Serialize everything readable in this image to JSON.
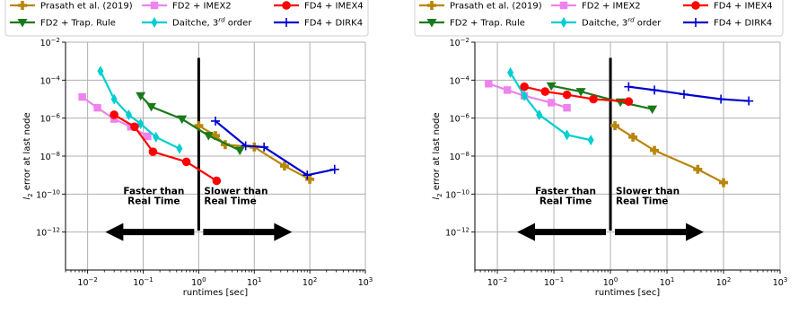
{
  "chart_data": [
    {
      "type": "scatter",
      "xlabel": "runtimes [sec]",
      "ylabel": "l_2 error at last node",
      "xscale": "log",
      "yscale": "log",
      "xlim": [
        0.004,
        1000
      ],
      "ylim": [
        1e-14,
        0.01
      ],
      "grid": true,
      "x_ticks": [
        "10^-2",
        "10^-1",
        "10^0",
        "10^1",
        "10^2",
        "10^3"
      ],
      "y_ticks": [
        "10^-12",
        "10^-10",
        "10^-8",
        "10^-6",
        "10^-4",
        "10^-2"
      ],
      "divider_x": 1.0,
      "annotations": [
        {
          "lines": [
            "Faster than",
            "Real Time"
          ],
          "arrow": "left"
        },
        {
          "lines": [
            "Slower than",
            "Real Time"
          ],
          "arrow": "right"
        }
      ],
      "series": [
        {
          "name": "Prasath et al. (2019)",
          "color": "#b8860b",
          "marker": "plus-filled",
          "x": [
            1.0,
            2.0,
            3.0,
            10.0,
            35.0,
            100.0
          ],
          "y": [
            4e-07,
            1.2e-07,
            4e-08,
            3e-08,
            3e-09,
            6e-10
          ]
        },
        {
          "name": "FD2 + Trap. Rule",
          "color": "#1a7a1a",
          "marker": "triangle-down",
          "x": [
            0.09,
            0.14,
            0.5,
            1.5,
            5.5
          ],
          "y": [
            1.5e-05,
            4e-06,
            9e-07,
            1.2e-07,
            2e-08
          ]
        },
        {
          "name": "FD2 + IMEX2",
          "color": "#ee82ee",
          "marker": "square",
          "x": [
            0.008,
            0.015,
            0.03,
            0.06,
            0.12
          ],
          "y": [
            1.3e-05,
            3.5e-06,
            9e-07,
            3.5e-07,
            1.1e-07
          ]
        },
        {
          "name": "Daitche, 3rd order",
          "color": "#00ced1",
          "marker": "thin-diamond",
          "x": [
            0.017,
            0.03,
            0.055,
            0.09,
            0.17,
            0.45
          ],
          "y": [
            0.0003,
            1e-05,
            1.5e-06,
            5e-07,
            1e-07,
            2.5e-08
          ]
        },
        {
          "name": "FD4 + IMEX4",
          "color": "#ff0000",
          "marker": "circle",
          "x": [
            0.03,
            0.07,
            0.15,
            0.6,
            2.1
          ],
          "y": [
            1.5e-06,
            3.5e-07,
            1.7e-08,
            5e-09,
            5e-10
          ]
        },
        {
          "name": "FD4 + DIRK4",
          "color": "#0000cd",
          "marker": "plus",
          "x": [
            2.0,
            7.0,
            15.0,
            90.0,
            280.0
          ],
          "y": [
            7e-07,
            3.5e-08,
            3e-08,
            1e-09,
            2e-09
          ]
        }
      ]
    },
    {
      "type": "scatter",
      "xlabel": "runtimes [sec]",
      "ylabel": "l_2 error at last node",
      "xscale": "log",
      "yscale": "log",
      "xlim": [
        0.004,
        1000
      ],
      "ylim": [
        1e-14,
        0.01
      ],
      "grid": true,
      "x_ticks": [
        "10^-2",
        "10^-1",
        "10^0",
        "10^1",
        "10^2",
        "10^3"
      ],
      "y_ticks": [
        "10^-12",
        "10^-10",
        "10^-8",
        "10^-6",
        "10^-4",
        "10^-2"
      ],
      "divider_x": 1.0,
      "annotations": [
        {
          "lines": [
            "Faster than",
            "Real Time"
          ],
          "arrow": "left"
        },
        {
          "lines": [
            "Slower than",
            "Real Time"
          ],
          "arrow": "right"
        }
      ],
      "series": [
        {
          "name": "Prasath et al. (2019)",
          "color": "#b8860b",
          "marker": "plus-filled",
          "x": [
            1.2,
            2.5,
            6.0,
            35.0,
            100.0
          ],
          "y": [
            4e-07,
            1e-07,
            2e-08,
            2e-09,
            4e-10
          ]
        },
        {
          "name": "FD2 + Trap. Rule",
          "color": "#1a7a1a",
          "marker": "triangle-down",
          "x": [
            0.09,
            0.3,
            1.5,
            5.5
          ],
          "y": [
            5e-05,
            2.5e-05,
            7e-06,
            3e-06
          ]
        },
        {
          "name": "FD2 + IMEX2",
          "color": "#ee82ee",
          "marker": "square",
          "x": [
            0.007,
            0.015,
            0.03,
            0.09,
            0.17
          ],
          "y": [
            6.5e-05,
            3e-05,
            1.5e-05,
            6.5e-06,
            3.5e-06
          ]
        },
        {
          "name": "Daitche, 3rd order",
          "color": "#00ced1",
          "marker": "thin-diamond",
          "x": [
            0.017,
            0.03,
            0.055,
            0.17,
            0.45
          ],
          "y": [
            0.00025,
            1.5e-05,
            1.5e-06,
            1.3e-07,
            7e-08
          ]
        },
        {
          "name": "FD4 + IMEX4",
          "color": "#ff0000",
          "marker": "circle",
          "x": [
            0.03,
            0.07,
            0.17,
            0.5,
            2.1
          ],
          "y": [
            4.5e-05,
            2.5e-05,
            1.7e-05,
            1e-05,
            7.5e-06
          ]
        },
        {
          "name": "FD4 + DIRK4",
          "color": "#0000cd",
          "marker": "plus",
          "x": [
            2.1,
            6.0,
            20.0,
            90.0,
            280.0
          ],
          "y": [
            4.5e-05,
            3e-05,
            1.8e-05,
            1e-05,
            8e-06
          ]
        }
      ]
    }
  ]
}
